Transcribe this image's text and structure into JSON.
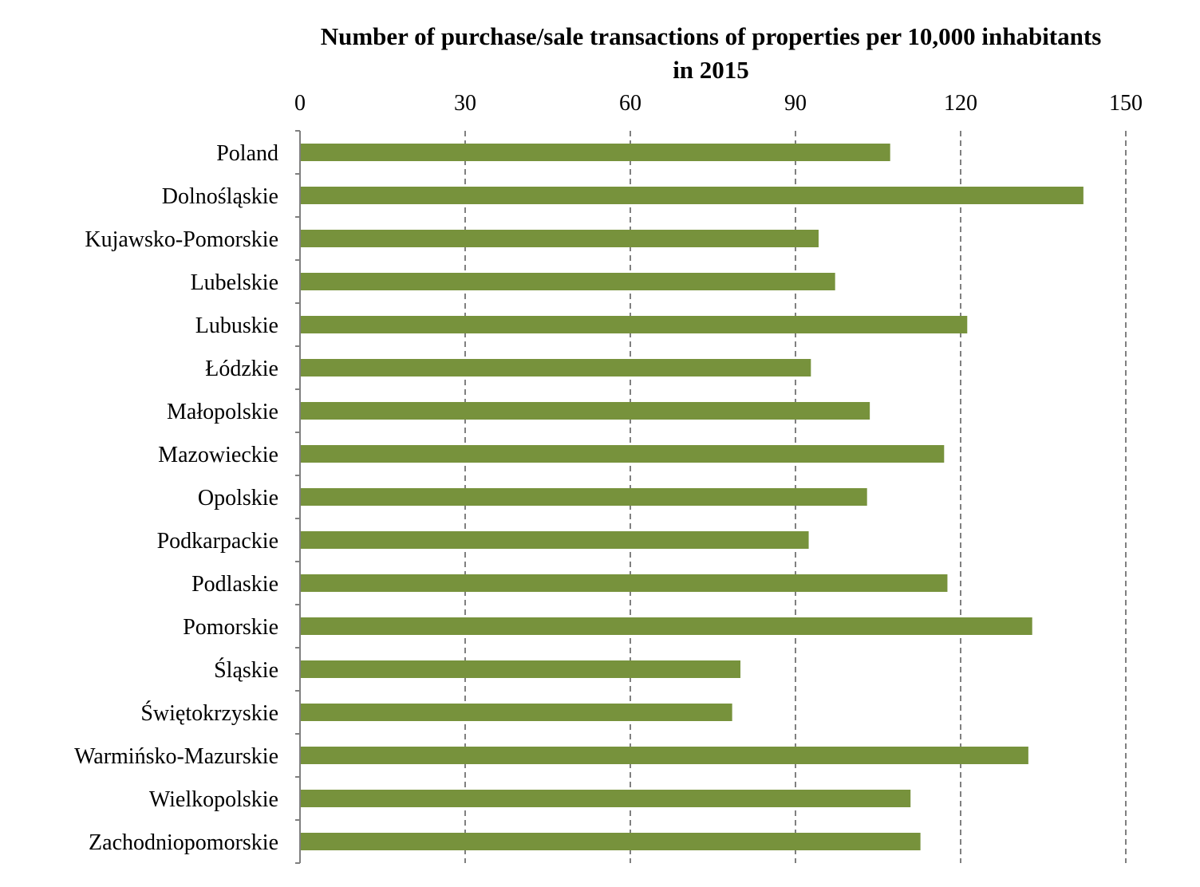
{
  "chart_data": {
    "type": "bar",
    "orientation": "horizontal",
    "title": "Number of purchase/sale transactions of properties per 10,000 inhabitants in 2015",
    "title_lines": [
      "Number of purchase/sale transactions of properties per 10,000 inhabitants",
      "in 2015"
    ],
    "xlabel": "",
    "ylabel": "",
    "xlim": [
      0,
      150
    ],
    "x_ticks": [
      0,
      30,
      60,
      90,
      120,
      150
    ],
    "x_tick_labels": [
      "0",
      "30",
      "60",
      "90",
      "120",
      "150"
    ],
    "x_axis_position": "top",
    "grid": "vertical dashed",
    "legend": "none",
    "bar_color": "#77923C",
    "grid_color": "#808080",
    "axis_color": "#808080",
    "categories": [
      "Poland",
      "Dolnośląskie",
      "Kujawsko-Pomorskie",
      "Lubelskie",
      "Lubuskie",
      "Łódzkie",
      "Małopolskie",
      "Mazowieckie",
      "Opolskie",
      "Podkarpackie",
      "Podlaskie",
      "Pomorskie",
      "Śląskie",
      "Świętokrzyskie",
      "Warmińsko-Mazurskie",
      "Wielkopolskie",
      "Zachodniopomorskie"
    ],
    "values": [
      107.2,
      142.3,
      94.2,
      97.2,
      121.2,
      92.8,
      103.5,
      117.0,
      103.0,
      92.4,
      117.6,
      133.0,
      80.0,
      78.5,
      132.3,
      110.9,
      112.7
    ]
  }
}
